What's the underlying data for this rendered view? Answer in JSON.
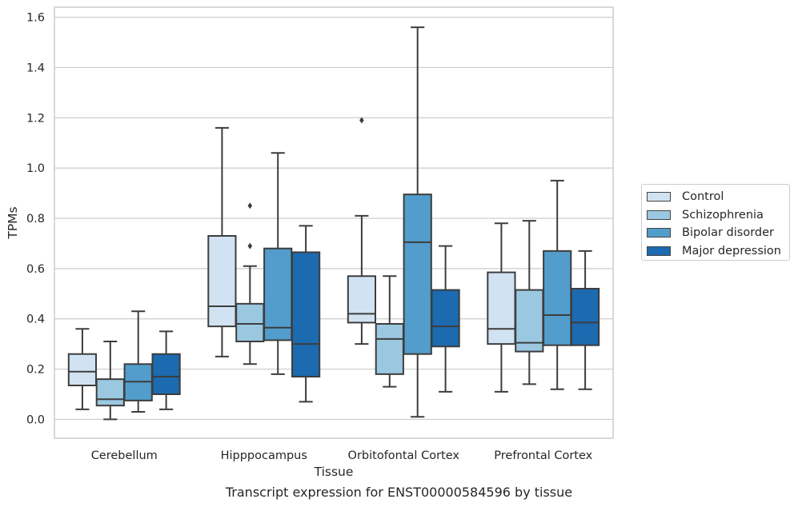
{
  "caption": "Transcript expression for ENST00000584596 by tissue",
  "chart_data": {
    "type": "box",
    "xlabel": "Tissue",
    "ylabel": "TPMs",
    "ylim": [
      -0.075,
      1.64
    ],
    "yticks": [
      "0.0",
      "0.2",
      "0.4",
      "0.6",
      "0.8",
      "1.0",
      "1.2",
      "1.4",
      "1.6"
    ],
    "categories": [
      "Cerebellum",
      "Hipppocampus",
      "Orbitofontal Cortex",
      "Prefrontal Cortex"
    ],
    "grid": true,
    "legend_position": "right",
    "series": [
      {
        "name": "Control",
        "color": "#d1e2f2",
        "boxes": [
          {
            "whislo": 0.04,
            "q1": 0.135,
            "med": 0.19,
            "q3": 0.26,
            "whishi": 0.36,
            "fliers": []
          },
          {
            "whislo": 0.25,
            "q1": 0.37,
            "med": 0.45,
            "q3": 0.73,
            "whishi": 1.16,
            "fliers": []
          },
          {
            "whislo": 0.3,
            "q1": 0.385,
            "med": 0.42,
            "q3": 0.57,
            "whishi": 0.81,
            "fliers": [
              1.19
            ]
          },
          {
            "whislo": 0.11,
            "q1": 0.3,
            "med": 0.36,
            "q3": 0.585,
            "whishi": 0.78,
            "fliers": []
          }
        ]
      },
      {
        "name": "Schizophrenia",
        "color": "#9ac8e0",
        "boxes": [
          {
            "whislo": 0.0,
            "q1": 0.055,
            "med": 0.08,
            "q3": 0.16,
            "whishi": 0.31,
            "fliers": []
          },
          {
            "whislo": 0.22,
            "q1": 0.31,
            "med": 0.38,
            "q3": 0.46,
            "whishi": 0.61,
            "fliers": [
              0.69,
              0.85
            ]
          },
          {
            "whislo": 0.13,
            "q1": 0.18,
            "med": 0.32,
            "q3": 0.38,
            "whishi": 0.57,
            "fliers": []
          },
          {
            "whislo": 0.14,
            "q1": 0.27,
            "med": 0.305,
            "q3": 0.515,
            "whishi": 0.79,
            "fliers": []
          }
        ]
      },
      {
        "name": "Bipolar disorder",
        "color": "#529dcc",
        "boxes": [
          {
            "whislo": 0.03,
            "q1": 0.075,
            "med": 0.15,
            "q3": 0.22,
            "whishi": 0.43,
            "fliers": []
          },
          {
            "whislo": 0.18,
            "q1": 0.315,
            "med": 0.365,
            "q3": 0.68,
            "whishi": 1.06,
            "fliers": []
          },
          {
            "whislo": 0.01,
            "q1": 0.26,
            "med": 0.705,
            "q3": 0.895,
            "whishi": 1.56,
            "fliers": []
          },
          {
            "whislo": 0.12,
            "q1": 0.295,
            "med": 0.415,
            "q3": 0.67,
            "whishi": 0.95,
            "fliers": []
          }
        ]
      },
      {
        "name": "Major depression",
        "color": "#1c6aaf",
        "boxes": [
          {
            "whislo": 0.04,
            "q1": 0.1,
            "med": 0.17,
            "q3": 0.26,
            "whishi": 0.35,
            "fliers": []
          },
          {
            "whislo": 0.07,
            "q1": 0.17,
            "med": 0.3,
            "q3": 0.665,
            "whishi": 0.77,
            "fliers": []
          },
          {
            "whislo": 0.11,
            "q1": 0.29,
            "med": 0.37,
            "q3": 0.515,
            "whishi": 0.69,
            "fliers": []
          },
          {
            "whislo": 0.12,
            "q1": 0.295,
            "med": 0.385,
            "q3": 0.52,
            "whishi": 0.67,
            "fliers": []
          }
        ]
      }
    ]
  }
}
